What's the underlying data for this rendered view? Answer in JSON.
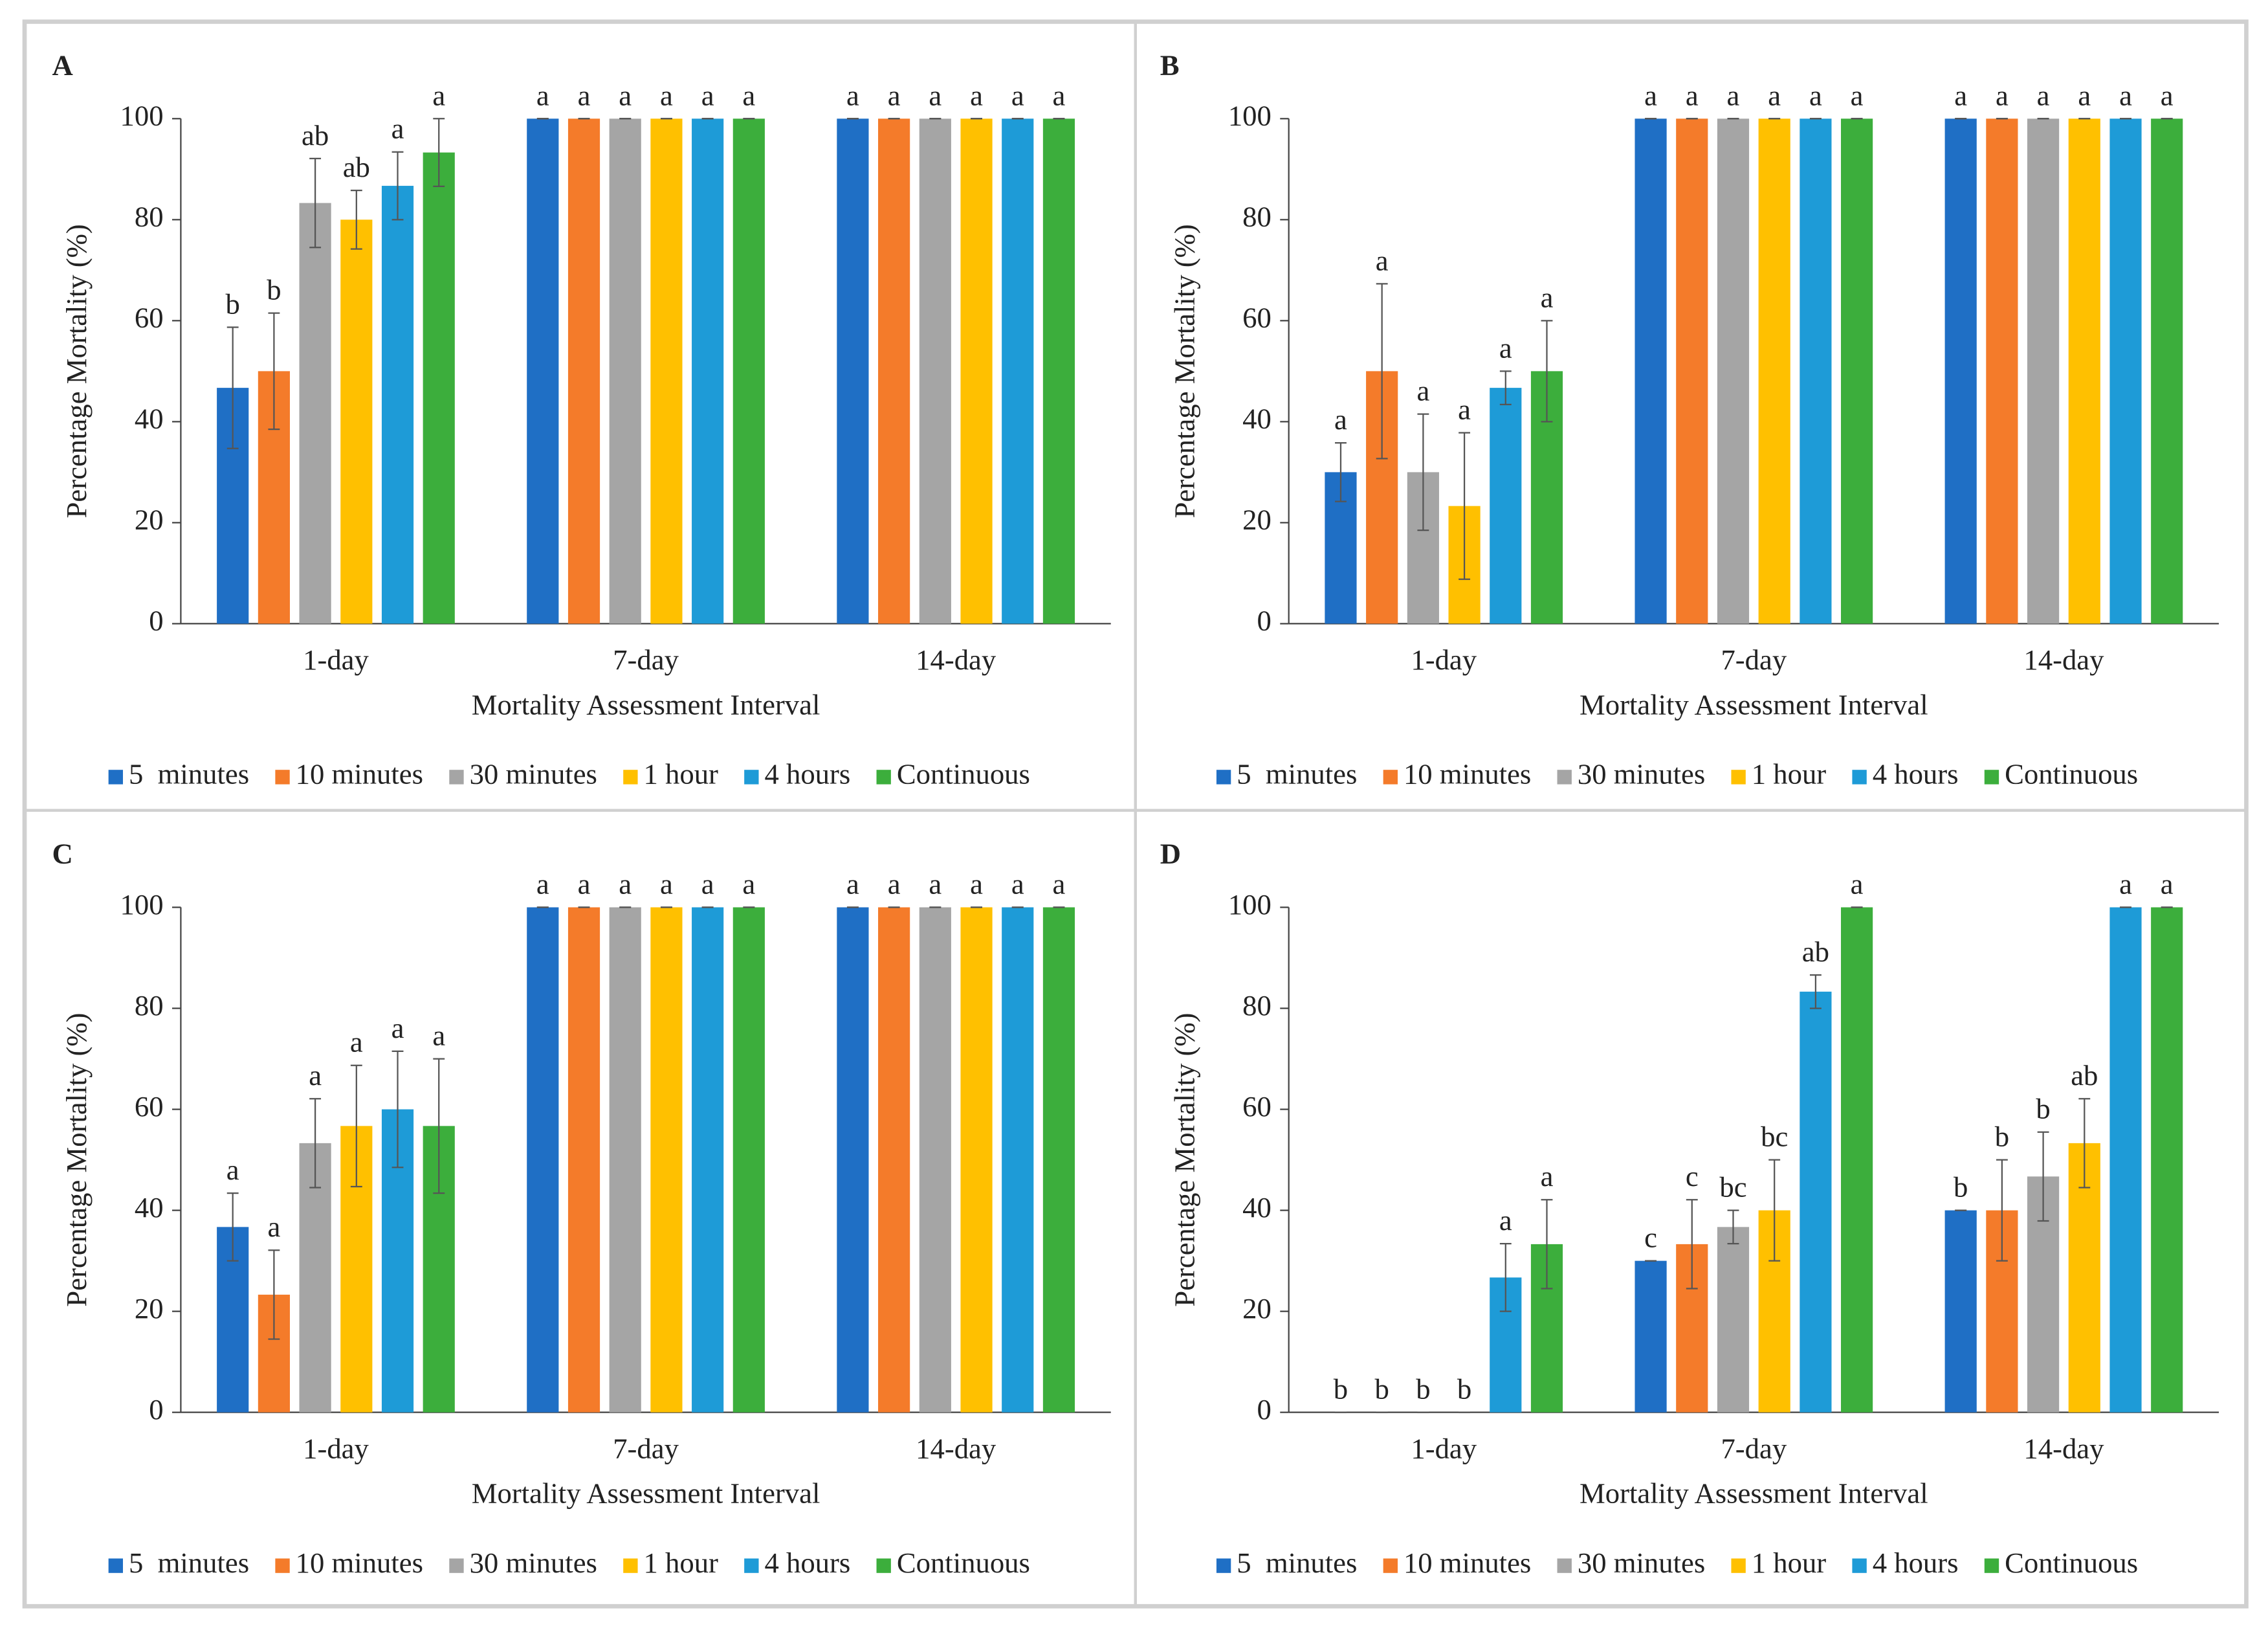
{
  "chart_data": [
    {
      "type": "bar",
      "panel": "A",
      "y_label": "Percentage Mortality (%)",
      "x_label": "Mortality Assessment Interval",
      "categories": [
        "1-day",
        "7-day",
        "14-day"
      ],
      "ylim": [
        0,
        100
      ],
      "yticks": [
        0,
        20,
        40,
        60,
        80,
        100
      ],
      "series": [
        {
          "name": "5  minutes",
          "color": "#1f6fc5",
          "values": [
            46.7,
            100,
            100
          ],
          "errors": [
            12,
            0,
            0
          ],
          "letters": [
            "b",
            "a",
            "a"
          ]
        },
        {
          "name": "10 minutes",
          "color": "#f47b2a",
          "values": [
            50,
            100,
            100
          ],
          "errors": [
            11.5,
            0,
            0
          ],
          "letters": [
            "b",
            "a",
            "a"
          ]
        },
        {
          "name": "30 minutes",
          "color": "#a5a5a5",
          "values": [
            83.3,
            100,
            100
          ],
          "errors": [
            8.8,
            0,
            0
          ],
          "letters": [
            "ab",
            "a",
            "a"
          ]
        },
        {
          "name": "1 hour",
          "color": "#ffc000",
          "values": [
            80,
            100,
            100
          ],
          "errors": [
            5.8,
            0,
            0
          ],
          "letters": [
            "ab",
            "a",
            "a"
          ]
        },
        {
          "name": "4 hours",
          "color": "#1e9bd7",
          "values": [
            86.7,
            100,
            100
          ],
          "errors": [
            6.7,
            0,
            0
          ],
          "letters": [
            "a",
            "a",
            "a"
          ]
        },
        {
          "name": "Continuous",
          "color": "#3cae3c",
          "values": [
            93.3,
            100,
            100
          ],
          "errors": [
            6.7,
            0,
            0
          ],
          "letters": [
            "a",
            "a",
            "a"
          ]
        }
      ]
    },
    {
      "type": "bar",
      "panel": "B",
      "y_label": "Percentage Mortality (%)",
      "x_label": "Mortality Assessment Interval",
      "categories": [
        "1-day",
        "7-day",
        "14-day"
      ],
      "ylim": [
        0,
        100
      ],
      "yticks": [
        0,
        20,
        40,
        60,
        80,
        100
      ],
      "series": [
        {
          "name": "5  minutes",
          "color": "#1f6fc5",
          "values": [
            30,
            100,
            100
          ],
          "errors": [
            5.8,
            0,
            0
          ],
          "letters": [
            "a",
            "a",
            "a"
          ]
        },
        {
          "name": "10 minutes",
          "color": "#f47b2a",
          "values": [
            50,
            100,
            100
          ],
          "errors": [
            17.3,
            0,
            0
          ],
          "letters": [
            "a",
            "a",
            "a"
          ]
        },
        {
          "name": "30 minutes",
          "color": "#a5a5a5",
          "values": [
            30,
            100,
            100
          ],
          "errors": [
            11.5,
            0,
            0
          ],
          "letters": [
            "a",
            "a",
            "a"
          ]
        },
        {
          "name": "1 hour",
          "color": "#ffc000",
          "values": [
            23.3,
            100,
            100
          ],
          "errors": [
            14.5,
            0,
            0
          ],
          "letters": [
            "a",
            "a",
            "a"
          ]
        },
        {
          "name": "4 hours",
          "color": "#1e9bd7",
          "values": [
            46.7,
            100,
            100
          ],
          "errors": [
            3.3,
            0,
            0
          ],
          "letters": [
            "a",
            "a",
            "a"
          ]
        },
        {
          "name": "Continuous",
          "color": "#3cae3c",
          "values": [
            50,
            100,
            100
          ],
          "errors": [
            10,
            0,
            0
          ],
          "letters": [
            "a",
            "a",
            "a"
          ]
        }
      ]
    },
    {
      "type": "bar",
      "panel": "C",
      "y_label": "Percentage Mortality (%)",
      "x_label": "Mortality Assessment Interval",
      "categories": [
        "1-day",
        "7-day",
        "14-day"
      ],
      "ylim": [
        0,
        100
      ],
      "yticks": [
        0,
        20,
        40,
        60,
        80,
        100
      ],
      "series": [
        {
          "name": "5  minutes",
          "color": "#1f6fc5",
          "values": [
            36.7,
            100,
            100
          ],
          "errors": [
            6.7,
            0,
            0
          ],
          "letters": [
            "a",
            "a",
            "a"
          ]
        },
        {
          "name": "10 minutes",
          "color": "#f47b2a",
          "values": [
            23.3,
            100,
            100
          ],
          "errors": [
            8.8,
            0,
            0
          ],
          "letters": [
            "a",
            "a",
            "a"
          ]
        },
        {
          "name": "30 minutes",
          "color": "#a5a5a5",
          "values": [
            53.3,
            100,
            100
          ],
          "errors": [
            8.8,
            0,
            0
          ],
          "letters": [
            "a",
            "a",
            "a"
          ]
        },
        {
          "name": "1 hour",
          "color": "#ffc000",
          "values": [
            56.7,
            100,
            100
          ],
          "errors": [
            12,
            0,
            0
          ],
          "letters": [
            "a",
            "a",
            "a"
          ]
        },
        {
          "name": "4 hours",
          "color": "#1e9bd7",
          "values": [
            60,
            100,
            100
          ],
          "errors": [
            11.5,
            0,
            0
          ],
          "letters": [
            "a",
            "a",
            "a"
          ]
        },
        {
          "name": "Continuous",
          "color": "#3cae3c",
          "values": [
            56.7,
            100,
            100
          ],
          "errors": [
            13.3,
            0,
            0
          ],
          "letters": [
            "a",
            "a",
            "a"
          ]
        }
      ]
    },
    {
      "type": "bar",
      "panel": "D",
      "y_label": "Percentage Mortality (%)",
      "x_label": "Mortality Assessment Interval",
      "categories": [
        "1-day",
        "7-day",
        "14-day"
      ],
      "ylim": [
        0,
        100
      ],
      "yticks": [
        0,
        20,
        40,
        60,
        80,
        100
      ],
      "series": [
        {
          "name": "5  minutes",
          "color": "#1f6fc5",
          "values": [
            0,
            30,
            40
          ],
          "errors": [
            0,
            0,
            0
          ],
          "letters": [
            "b",
            "c",
            "b"
          ]
        },
        {
          "name": "10 minutes",
          "color": "#f47b2a",
          "values": [
            0,
            33.3,
            40
          ],
          "errors": [
            0,
            8.8,
            10
          ],
          "letters": [
            "b",
            "c",
            "b"
          ]
        },
        {
          "name": "30 minutes",
          "color": "#a5a5a5",
          "values": [
            0,
            36.7,
            46.7
          ],
          "errors": [
            0,
            3.3,
            8.8
          ],
          "letters": [
            "b",
            "bc",
            "b"
          ]
        },
        {
          "name": "1 hour",
          "color": "#ffc000",
          "values": [
            0,
            40,
            53.3
          ],
          "errors": [
            0,
            10,
            8.8
          ],
          "letters": [
            "b",
            "bc",
            "ab"
          ]
        },
        {
          "name": "4 hours",
          "color": "#1e9bd7",
          "values": [
            26.7,
            83.3,
            100
          ],
          "errors": [
            6.7,
            3.3,
            0
          ],
          "letters": [
            "a",
            "ab",
            "a"
          ]
        },
        {
          "name": "Continuous",
          "color": "#3cae3c",
          "values": [
            33.3,
            100,
            100
          ],
          "errors": [
            8.8,
            0,
            0
          ],
          "letters": [
            "a",
            "a",
            "a"
          ]
        }
      ]
    }
  ]
}
